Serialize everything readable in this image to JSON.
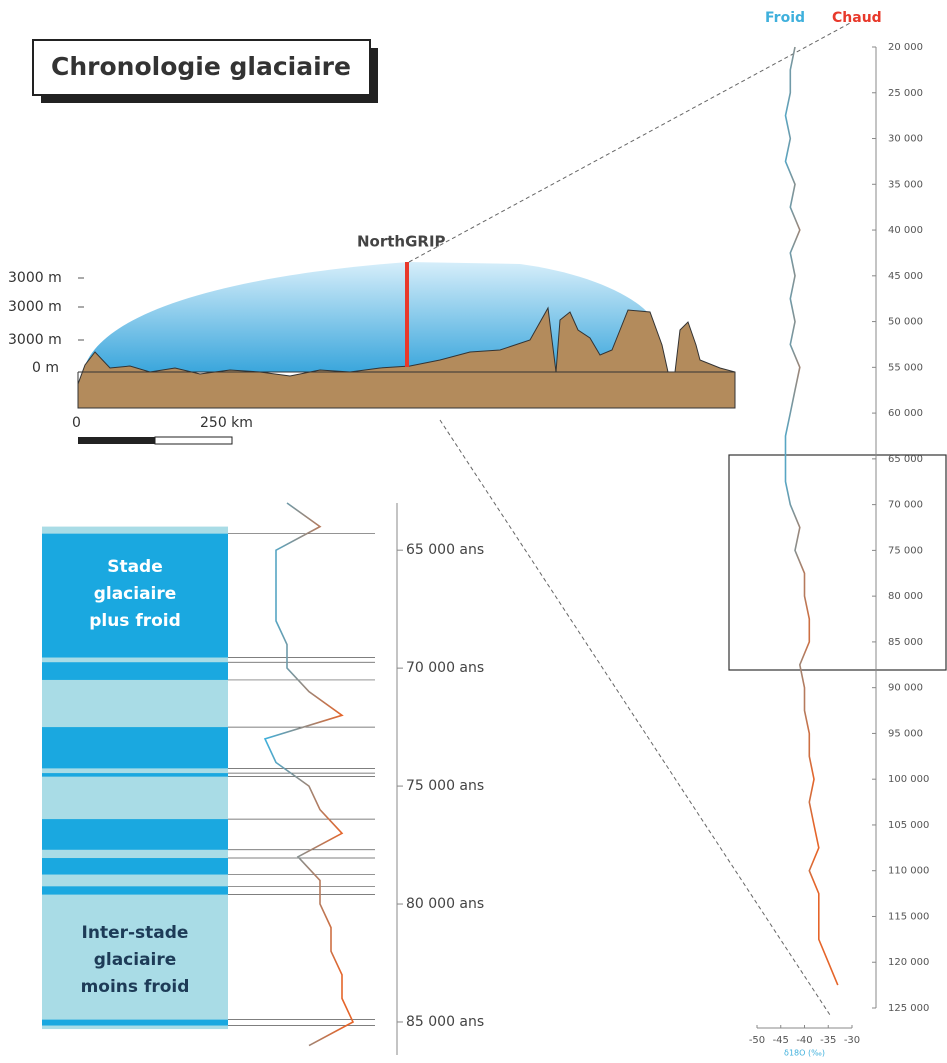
{
  "title": "Chronologie glaciaire",
  "profile": {
    "site": "NorthGRIP",
    "height_labels": [
      "3000 m",
      "3000 m",
      "3000 m",
      "0 m"
    ],
    "scale_labels": [
      "0",
      "250 km"
    ]
  },
  "chart_data": [
    {
      "type": "line",
      "legend": [
        {
          "name": "Froid",
          "color": "#3fb0dc"
        },
        {
          "name": "Chaud",
          "color": "#e8392b"
        }
      ],
      "xlabel": "δ18O (‰)",
      "xlim": [
        -50,
        -30
      ],
      "xticks": [
        -50,
        -45,
        -40,
        -35,
        -30
      ],
      "ylim": [
        20000,
        125000
      ],
      "yticks": [
        {
          "value": 20000,
          "label": "20 000"
        },
        {
          "value": 25000,
          "label": "25 000"
        },
        {
          "value": 30000,
          "label": "30 000"
        },
        {
          "value": 35000,
          "label": "35 000"
        },
        {
          "value": 40000,
          "label": "40 000"
        },
        {
          "value": 45000,
          "label": "45 000"
        },
        {
          "value": 50000,
          "label": "50 000"
        },
        {
          "value": 55000,
          "label": "55 000"
        },
        {
          "value": 60000,
          "label": "60 000"
        },
        {
          "value": 65000,
          "label": "65 000"
        },
        {
          "value": 70000,
          "label": "70 000"
        },
        {
          "value": 75000,
          "label": "75 000"
        },
        {
          "value": 80000,
          "label": "80 000"
        },
        {
          "value": 85000,
          "label": "85 000"
        },
        {
          "value": 90000,
          "label": "90 000"
        },
        {
          "value": 95000,
          "label": "95 000"
        },
        {
          "value": 100000,
          "label": "100 000"
        },
        {
          "value": 105000,
          "label": "105 000"
        },
        {
          "value": 110000,
          "label": "110 000"
        },
        {
          "value": 115000,
          "label": "115 000"
        },
        {
          "value": 120000,
          "label": "120 000"
        },
        {
          "value": 125000,
          "label": "125 000"
        }
      ],
      "ages": [
        20000,
        22500,
        25000,
        27500,
        30000,
        32500,
        35000,
        37500,
        40000,
        42500,
        45000,
        47500,
        50000,
        52500,
        55000,
        57500,
        60000,
        62500,
        65000,
        67500,
        70000,
        72500,
        75000,
        77500,
        80000,
        82500,
        85000,
        87500,
        90000,
        92500,
        95000,
        97500,
        100000,
        102500,
        105000,
        107500,
        110000,
        112500,
        115000,
        117500,
        120000,
        122500
      ],
      "values": [
        -42,
        -43,
        -43,
        -44,
        -43,
        -44,
        -42,
        -43,
        -41,
        -43,
        -42,
        -43,
        -42,
        -43,
        -41,
        -42,
        -43,
        -44,
        -44,
        -44,
        -43,
        -41,
        -42,
        -40,
        -40,
        -39,
        -39,
        -41,
        -40,
        -40,
        -39,
        -39,
        -38,
        -39,
        -38,
        -37,
        -39,
        -37,
        -37,
        -37,
        -35,
        -33
      ]
    },
    {
      "type": "line",
      "xlim": [
        -50,
        -30
      ],
      "ylim": [
        63000,
        86400
      ],
      "yticks": [
        {
          "value": 65000,
          "label": "65 000 ans"
        },
        {
          "value": 70000,
          "label": "70 000 ans"
        },
        {
          "value": 75000,
          "label": "75 000 ans"
        },
        {
          "value": 80000,
          "label": "80 000 ans"
        },
        {
          "value": 85000,
          "label": "85 000 ans"
        }
      ],
      "ages": [
        63000,
        64000,
        65000,
        66000,
        67000,
        68000,
        69000,
        70000,
        71000,
        72000,
        73000,
        74000,
        75000,
        76000,
        77000,
        78000,
        79000,
        80000,
        81000,
        82000,
        83000,
        84000,
        85000,
        86000
      ],
      "values": [
        -43,
        -40,
        -44,
        -44,
        -44,
        -44,
        -43,
        -43,
        -41,
        -38,
        -45,
        -44,
        -41,
        -40,
        -38,
        -42,
        -40,
        -40,
        -39,
        -39,
        -38,
        -38,
        -37,
        -41
      ],
      "interstadial_range": [
        64000,
        85300
      ],
      "stadials": [
        [
          64300,
          69550
        ],
        [
          69750,
          70500
        ],
        [
          72500,
          74250
        ],
        [
          74450,
          74600
        ],
        [
          76400,
          77700
        ],
        [
          78050,
          78750
        ],
        [
          79250,
          79600
        ],
        [
          84900,
          85150
        ]
      ],
      "stadial_label": [
        "Stade",
        "glaciaire",
        "plus froid"
      ],
      "interstadial_label": [
        "Inter-stade",
        "glaciaire",
        "moins froid"
      ]
    }
  ]
}
